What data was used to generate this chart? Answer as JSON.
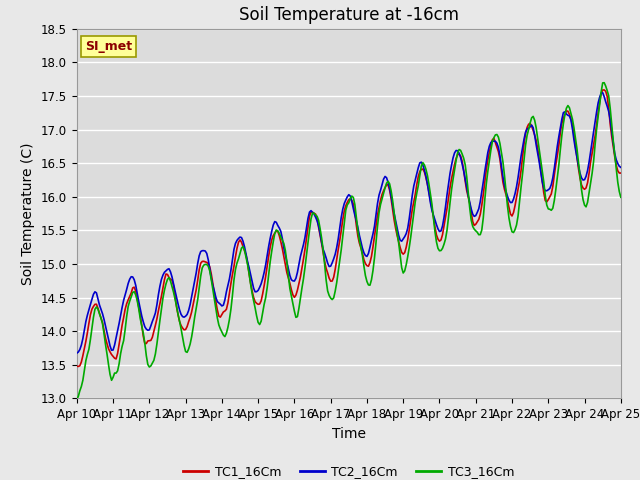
{
  "title": "Soil Temperature at -16cm",
  "xlabel": "Time",
  "ylabel": "Soil Temperature (C)",
  "ylim": [
    13.0,
    18.5
  ],
  "fig_bg_color": "#e8e8e8",
  "plot_bg_color": "#dcdcdc",
  "grid_color": "#ffffff",
  "series": {
    "TC1_16Cm": {
      "color": "#cc0000",
      "label": "TC1_16Cm"
    },
    "TC2_16Cm": {
      "color": "#0000cc",
      "label": "TC2_16Cm"
    },
    "TC3_16Cm": {
      "color": "#00aa00",
      "label": "TC3_16Cm"
    }
  },
  "x_ticks": [
    "Apr 10",
    "Apr 11",
    "Apr 12",
    "Apr 13",
    "Apr 14",
    "Apr 15",
    "Apr 16",
    "Apr 17",
    "Apr 18",
    "Apr 19",
    "Apr 20",
    "Apr 21",
    "Apr 22",
    "Apr 23",
    "Apr 24",
    "Apr 25"
  ],
  "title_fontsize": 12,
  "axis_label_fontsize": 10,
  "tick_fontsize": 8.5,
  "linewidth": 1.2
}
